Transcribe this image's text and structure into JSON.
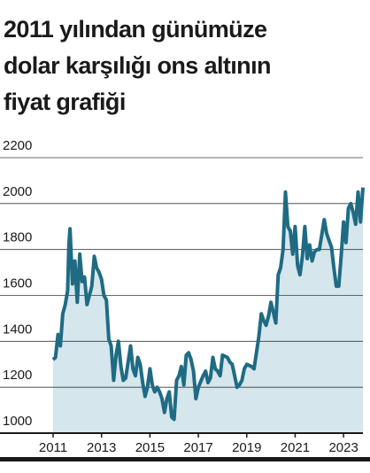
{
  "chart_data": {
    "type": "area",
    "title": [
      "2011 yılından günümüze",
      "dolar karşılığı ons altının",
      "fiyat grafiği"
    ],
    "line_color": "#1f6b84",
    "fill_color": "#d5e6ed",
    "x": [
      2011.0,
      2011.1,
      2011.2,
      2011.3,
      2011.4,
      2011.5,
      2011.6,
      2011.65,
      2011.7,
      2011.8,
      2011.9,
      2012.0,
      2012.1,
      2012.2,
      2012.3,
      2012.4,
      2012.5,
      2012.6,
      2012.7,
      2012.8,
      2012.9,
      2013.0,
      2013.1,
      2013.2,
      2013.3,
      2013.4,
      2013.5,
      2013.6,
      2013.7,
      2013.8,
      2013.9,
      2014.0,
      2014.2,
      2014.3,
      2014.4,
      2014.5,
      2014.6,
      2014.7,
      2014.8,
      2014.9,
      2015.0,
      2015.1,
      2015.2,
      2015.3,
      2015.4,
      2015.5,
      2015.6,
      2015.7,
      2015.8,
      2015.9,
      2016.0,
      2016.1,
      2016.2,
      2016.3,
      2016.4,
      2016.5,
      2016.6,
      2016.7,
      2016.8,
      2016.9,
      2017.0,
      2017.2,
      2017.3,
      2017.4,
      2017.5,
      2017.6,
      2017.7,
      2017.8,
      2017.9,
      2018.0,
      2018.2,
      2018.3,
      2018.4,
      2018.5,
      2018.6,
      2018.7,
      2018.8,
      2018.9,
      2019.0,
      2019.2,
      2019.3,
      2019.5,
      2019.6,
      2019.7,
      2019.8,
      2019.9,
      2020.0,
      2020.2,
      2020.3,
      2020.4,
      2020.5,
      2020.6,
      2020.7,
      2020.8,
      2020.9,
      2021.0,
      2021.1,
      2021.2,
      2021.3,
      2021.4,
      2021.5,
      2021.6,
      2021.7,
      2021.8,
      2021.9,
      2022.0,
      2022.2,
      2022.3,
      2022.4,
      2022.5,
      2022.6,
      2022.7,
      2022.8,
      2022.9,
      2023.0,
      2023.1,
      2023.2,
      2023.3,
      2023.4,
      2023.5,
      2023.6,
      2023.7,
      2023.8
    ],
    "values": [
      1320,
      1330,
      1430,
      1380,
      1520,
      1560,
      1620,
      1820,
      1890,
      1650,
      1750,
      1570,
      1780,
      1660,
      1680,
      1560,
      1600,
      1640,
      1770,
      1720,
      1700,
      1670,
      1600,
      1580,
      1410,
      1380,
      1230,
      1340,
      1400,
      1290,
      1230,
      1240,
      1380,
      1280,
      1250,
      1330,
      1300,
      1220,
      1160,
      1200,
      1280,
      1210,
      1180,
      1200,
      1180,
      1150,
      1090,
      1150,
      1180,
      1070,
      1060,
      1230,
      1250,
      1290,
      1210,
      1340,
      1350,
      1320,
      1270,
      1150,
      1200,
      1250,
      1270,
      1220,
      1240,
      1330,
      1280,
      1270,
      1250,
      1340,
      1330,
      1310,
      1300,
      1250,
      1200,
      1210,
      1230,
      1280,
      1300,
      1290,
      1280,
      1420,
      1520,
      1490,
      1470,
      1510,
      1570,
      1480,
      1690,
      1720,
      1800,
      2050,
      1900,
      1880,
      1780,
      1900,
      1730,
      1690,
      1770,
      1900,
      1760,
      1820,
      1750,
      1790,
      1800,
      1800,
      1930,
      1870,
      1840,
      1810,
      1720,
      1640,
      1640,
      1770,
      1920,
      1830,
      1980,
      2000,
      1960,
      1910,
      2050,
      1920,
      2070
    ],
    "xlim": [
      2011,
      2023.8
    ],
    "ylim": [
      1000,
      2200
    ],
    "xticks": [
      2011,
      2013,
      2015,
      2017,
      2019,
      2021,
      2023
    ],
    "yticks": [
      1000,
      1200,
      1400,
      1600,
      1800,
      2000,
      2200
    ],
    "grid": true
  }
}
